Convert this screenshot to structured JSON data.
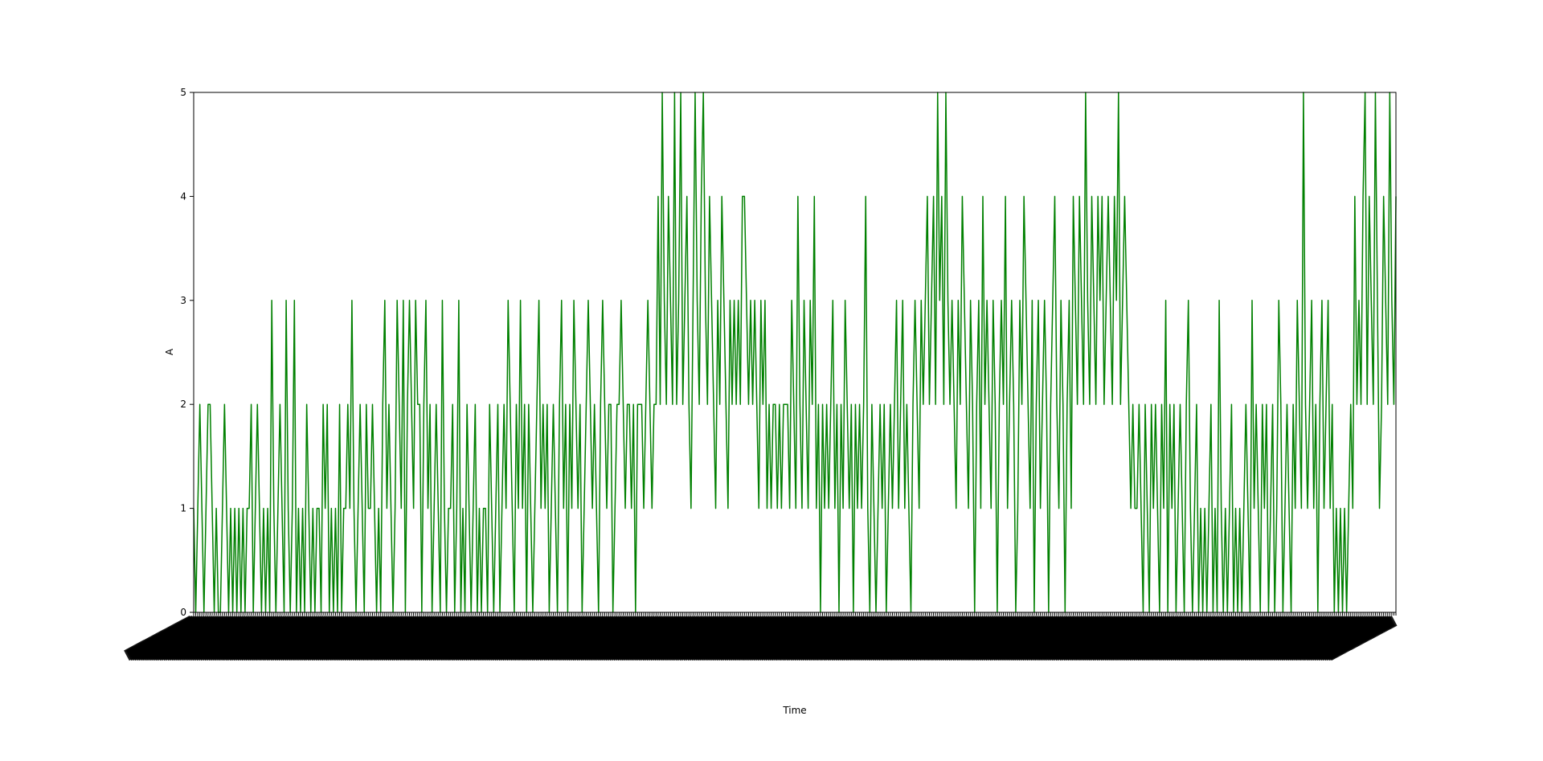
{
  "chart_data": {
    "type": "line",
    "xlabel": "Time",
    "ylabel": "A",
    "ylim": [
      0,
      5
    ],
    "yticks": [
      0,
      1,
      2,
      3,
      4,
      5
    ],
    "x_tick_labels_rotated": true,
    "grid": false,
    "legend": "none",
    "line_color": "#008000",
    "series": [
      {
        "values": [
          1,
          0,
          1,
          2,
          1,
          0,
          1,
          2,
          2,
          1,
          0,
          1,
          0,
          0,
          1,
          2,
          1,
          0,
          1,
          0,
          1,
          0,
          1,
          0,
          1,
          0,
          1,
          1,
          2,
          0,
          1,
          2,
          1,
          0,
          1,
          0,
          1,
          0,
          3,
          1,
          0,
          1,
          2,
          1,
          0,
          3,
          1,
          0,
          1,
          3,
          0,
          1,
          0,
          1,
          0,
          2,
          1,
          0,
          1,
          0,
          1,
          1,
          0,
          2,
          1,
          2,
          0,
          1,
          0,
          1,
          0,
          2,
          0,
          1,
          1,
          2,
          1,
          3,
          1,
          0,
          1,
          2,
          1,
          0,
          2,
          1,
          1,
          2,
          1,
          0,
          1,
          0,
          2,
          3,
          1,
          2,
          1,
          0,
          1,
          3,
          2,
          1,
          3,
          0,
          2,
          3,
          2,
          1,
          3,
          2,
          2,
          0,
          2,
          3,
          1,
          2,
          0,
          1,
          2,
          1,
          0,
          3,
          1,
          0,
          1,
          1,
          2,
          0,
          1,
          3,
          0,
          1,
          0,
          2,
          1,
          0,
          1,
          2,
          0,
          1,
          0,
          1,
          1,
          0,
          2,
          1,
          0,
          1,
          2,
          0,
          1,
          2,
          1,
          3,
          2,
          1,
          0,
          2,
          1,
          3,
          1,
          2,
          0,
          2,
          1,
          0,
          1,
          2,
          3,
          1,
          2,
          1,
          2,
          0,
          1,
          2,
          1,
          0,
          2,
          3,
          1,
          2,
          0,
          2,
          1,
          3,
          2,
          1,
          2,
          0,
          1,
          2,
          3,
          2,
          1,
          2,
          1,
          0,
          2,
          3,
          2,
          1,
          2,
          2,
          0,
          1,
          2,
          2,
          3,
          2,
          1,
          2,
          2,
          1,
          2,
          0,
          2,
          2,
          2,
          1,
          2,
          3,
          2,
          1,
          2,
          2,
          4,
          2,
          5,
          3,
          2,
          4,
          3,
          2,
          5,
          2,
          3,
          5,
          2,
          3,
          4,
          2,
          1,
          3,
          5,
          3,
          2,
          4,
          5,
          3,
          2,
          4,
          3,
          2,
          1,
          3,
          2,
          4,
          3,
          2,
          1,
          3,
          2,
          3,
          2,
          3,
          2,
          4,
          4,
          3,
          2,
          3,
          2,
          3,
          2,
          1,
          3,
          2,
          3,
          1,
          2,
          1,
          2,
          2,
          1,
          2,
          1,
          2,
          2,
          2,
          1,
          3,
          2,
          1,
          4,
          2,
          1,
          3,
          2,
          1,
          3,
          2,
          4,
          1,
          2,
          0,
          2,
          1,
          2,
          1,
          2,
          3,
          1,
          2,
          0,
          2,
          1,
          3,
          2,
          1,
          2,
          0,
          2,
          1,
          2,
          1,
          2,
          4,
          1,
          0,
          2,
          1,
          0,
          1,
          2,
          1,
          2,
          0,
          1,
          2,
          1,
          2,
          3,
          1,
          2,
          3,
          1,
          2,
          1,
          0,
          2,
          3,
          2,
          1,
          3,
          2,
          3,
          4,
          2,
          3,
          4,
          2,
          5,
          3,
          4,
          2,
          5,
          3,
          2,
          3,
          2,
          1,
          3,
          2,
          4,
          3,
          2,
          1,
          3,
          2,
          0,
          2,
          3,
          1,
          4,
          2,
          3,
          2,
          1,
          3,
          2,
          0,
          2,
          3,
          2,
          4,
          1,
          2,
          3,
          2,
          0,
          1,
          3,
          2,
          4,
          3,
          2,
          1,
          3,
          0,
          2,
          3,
          1,
          2,
          3,
          2,
          0,
          2,
          3,
          4,
          2,
          1,
          3,
          2,
          0,
          2,
          3,
          1,
          4,
          3,
          2,
          4,
          3,
          2,
          5,
          3,
          2,
          4,
          3,
          2,
          4,
          3,
          4,
          2,
          3,
          4,
          3,
          2,
          4,
          3,
          5,
          2,
          3,
          4,
          3,
          2,
          1,
          2,
          1,
          1,
          2,
          1,
          0,
          2,
          1,
          0,
          2,
          1,
          2,
          1,
          0,
          2,
          1,
          3,
          0,
          2,
          1,
          2,
          0,
          1,
          2,
          1,
          0,
          2,
          3,
          1,
          0,
          1,
          2,
          0,
          1,
          0,
          1,
          0,
          1,
          2,
          0,
          1,
          0,
          3,
          1,
          0,
          1,
          0,
          1,
          2,
          0,
          1,
          0,
          1,
          0,
          1,
          2,
          1,
          0,
          3,
          1,
          2,
          1,
          0,
          2,
          1,
          2,
          0,
          1,
          2,
          0,
          1,
          3,
          2,
          0,
          1,
          2,
          1,
          0,
          2,
          1,
          3,
          2,
          1,
          5,
          2,
          1,
          2,
          3,
          1,
          2,
          0,
          2,
          3,
          1,
          2,
          3,
          1,
          2,
          0,
          1,
          0,
          1,
          0,
          1,
          0,
          1,
          2,
          1,
          4,
          2,
          3,
          2,
          4,
          5,
          2,
          4,
          3,
          2,
          5,
          3,
          1,
          2,
          4,
          3,
          2,
          5,
          3,
          2,
          4
        ]
      }
    ]
  }
}
